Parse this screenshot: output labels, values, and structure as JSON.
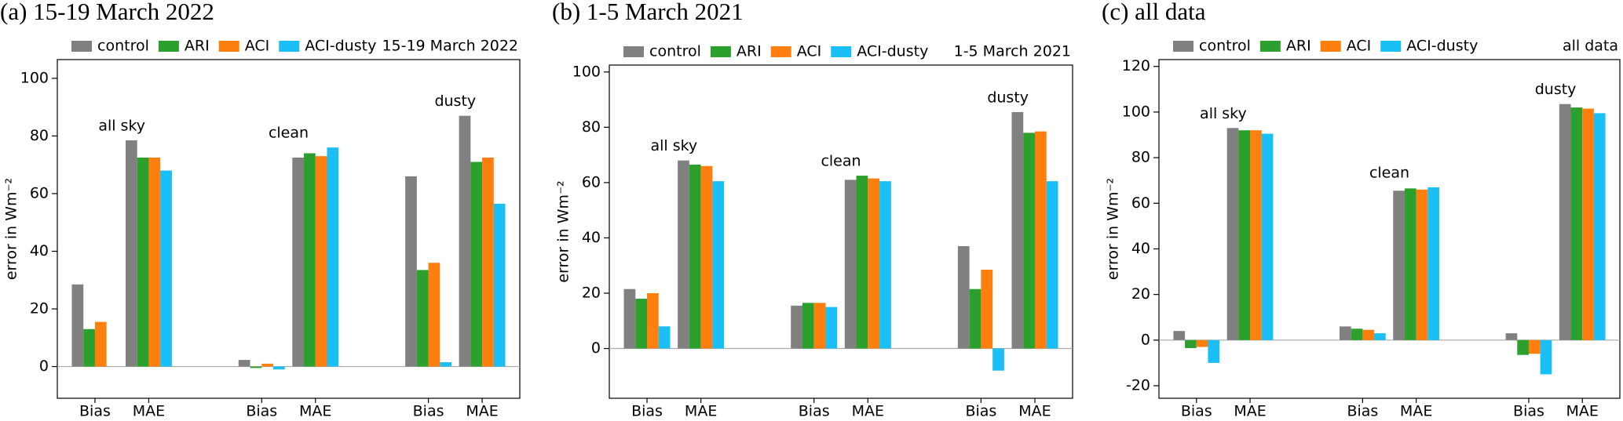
{
  "chart_data": [
    {
      "type": "bar",
      "title": "(a) 15-19 March 2022",
      "annotation": "15-19 March 2022",
      "y_label": "error in Wm⁻²",
      "categories": [
        "Bias",
        "MAE",
        "Bias",
        "MAE",
        "Bias",
        "MAE"
      ],
      "group_labels": [
        "all sky",
        "clean",
        "dusty"
      ],
      "series": [
        {
          "name": "control",
          "color": "#808080",
          "values": [
            28.5,
            78.5,
            2.3,
            72.5,
            66,
            87
          ]
        },
        {
          "name": "ARI",
          "color": "#2ca02c",
          "values": [
            13,
            72.5,
            -0.5,
            74,
            33.5,
            71
          ]
        },
        {
          "name": "ACI",
          "color": "#ff7f0e",
          "values": [
            15.5,
            72.5,
            1,
            73,
            36,
            72.5
          ]
        },
        {
          "name": "ACI-dusty",
          "color": "#1ac0f5",
          "values": [
            0,
            68,
            -1,
            76,
            1.5,
            56.5
          ]
        }
      ],
      "ylim": [
        -11,
        106.5
      ],
      "yticks": [
        0,
        20,
        40,
        60,
        80,
        100
      ]
    },
    {
      "type": "bar",
      "title": "(b) 1-5 March 2021",
      "annotation": "1-5 March 2021",
      "y_label": "error in Wm⁻²",
      "categories": [
        "Bias",
        "MAE",
        "Bias",
        "MAE",
        "Bias",
        "MAE"
      ],
      "group_labels": [
        "all sky",
        "clean",
        "dusty"
      ],
      "series": [
        {
          "name": "control",
          "color": "#808080",
          "values": [
            21.5,
            68,
            15.5,
            61,
            37,
            85.5
          ]
        },
        {
          "name": "ARI",
          "color": "#2ca02c",
          "values": [
            18,
            66.5,
            16.5,
            62.5,
            21.5,
            78
          ]
        },
        {
          "name": "ACI",
          "color": "#ff7f0e",
          "values": [
            20,
            66,
            16.5,
            61.5,
            28.5,
            78.5
          ]
        },
        {
          "name": "ACI-dusty",
          "color": "#1ac0f5",
          "values": [
            8,
            60.5,
            15,
            60.5,
            -8,
            60.5
          ]
        }
      ],
      "ylim": [
        -18,
        102.5
      ],
      "yticks": [
        0,
        20,
        40,
        60,
        80,
        100
      ]
    },
    {
      "type": "bar",
      "title": "(c) all data",
      "annotation": "all data",
      "y_label": "error in Wm⁻²",
      "categories": [
        "Bias",
        "MAE",
        "Bias",
        "MAE",
        "Bias",
        "MAE"
      ],
      "group_labels": [
        "all sky",
        "clean",
        "dusty"
      ],
      "series": [
        {
          "name": "control",
          "color": "#808080",
          "values": [
            4,
            93,
            6,
            65.5,
            3,
            103.5
          ]
        },
        {
          "name": "ARI",
          "color": "#2ca02c",
          "values": [
            -3.5,
            92,
            5,
            66.5,
            -6.5,
            102
          ]
        },
        {
          "name": "ACI",
          "color": "#ff7f0e",
          "values": [
            -3,
            92,
            4.5,
            66,
            -6,
            101.5
          ]
        },
        {
          "name": "ACI-dusty",
          "color": "#1ac0f5",
          "values": [
            -10,
            90.5,
            3,
            67,
            -15,
            99.5
          ]
        }
      ],
      "ylim": [
        -25.5,
        123
      ],
      "yticks": [
        -20,
        0,
        20,
        40,
        60,
        80,
        100,
        120
      ]
    }
  ]
}
